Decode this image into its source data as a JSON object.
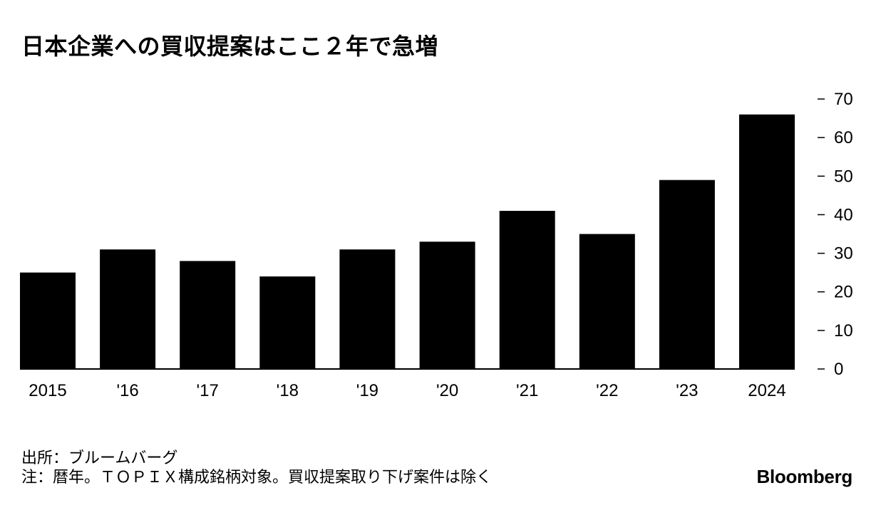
{
  "title": "日本企業への買収提案はここ２年で急増",
  "source": "出所：ブルームバーグ",
  "note": "注：暦年。ＴＯＰＩＸ構成銘柄対象。買収提案取り下げ案件は除く",
  "brand": "Bloomberg",
  "colors": {
    "bar": "#000000",
    "text": "#000000",
    "background": "#ffffff"
  },
  "chart_data": {
    "type": "bar",
    "categories": [
      "2015",
      "'16",
      "'17",
      "'18",
      "'19",
      "'20",
      "'21",
      "'22",
      "'23",
      "2024"
    ],
    "values": [
      25,
      31,
      28,
      24,
      31,
      33,
      41,
      35,
      49,
      66
    ],
    "title": "日本企業への買収提案はここ２年で急増",
    "xlabel": "",
    "ylabel": "",
    "ylim": [
      0,
      70
    ],
    "yticks": [
      0,
      10,
      20,
      30,
      40,
      50,
      60,
      70
    ],
    "ytick_labels": [
      "0",
      "10",
      "20",
      "30",
      "40",
      "50",
      "60",
      "70"
    ],
    "y_axis_side": "right",
    "grid": false,
    "legend": "none"
  }
}
